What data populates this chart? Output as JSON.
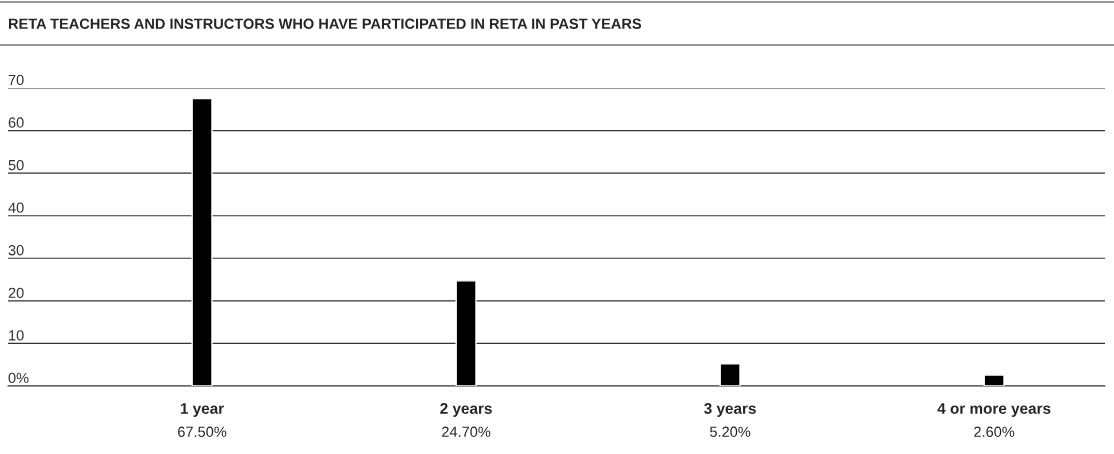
{
  "chart_data": {
    "type": "bar",
    "title": "RETA TEACHERS AND INSTRUCTORS WHO HAVE PARTICIPATED IN RETA IN PAST YEARS",
    "categories": [
      "1 year",
      "2 years",
      "3 years",
      "4 or more years"
    ],
    "values": [
      67.5,
      24.7,
      5.2,
      2.6
    ],
    "color": "#000000",
    "value_labels": [
      "67.50%",
      "24.70%",
      "5.20%",
      "2.60%"
    ],
    "ylim": [
      0,
      70
    ],
    "yticks": [
      {
        "value": 0,
        "label": "0%"
      },
      10,
      20,
      30,
      40,
      50,
      60,
      70
    ],
    "grid": "y",
    "legend": false
  }
}
